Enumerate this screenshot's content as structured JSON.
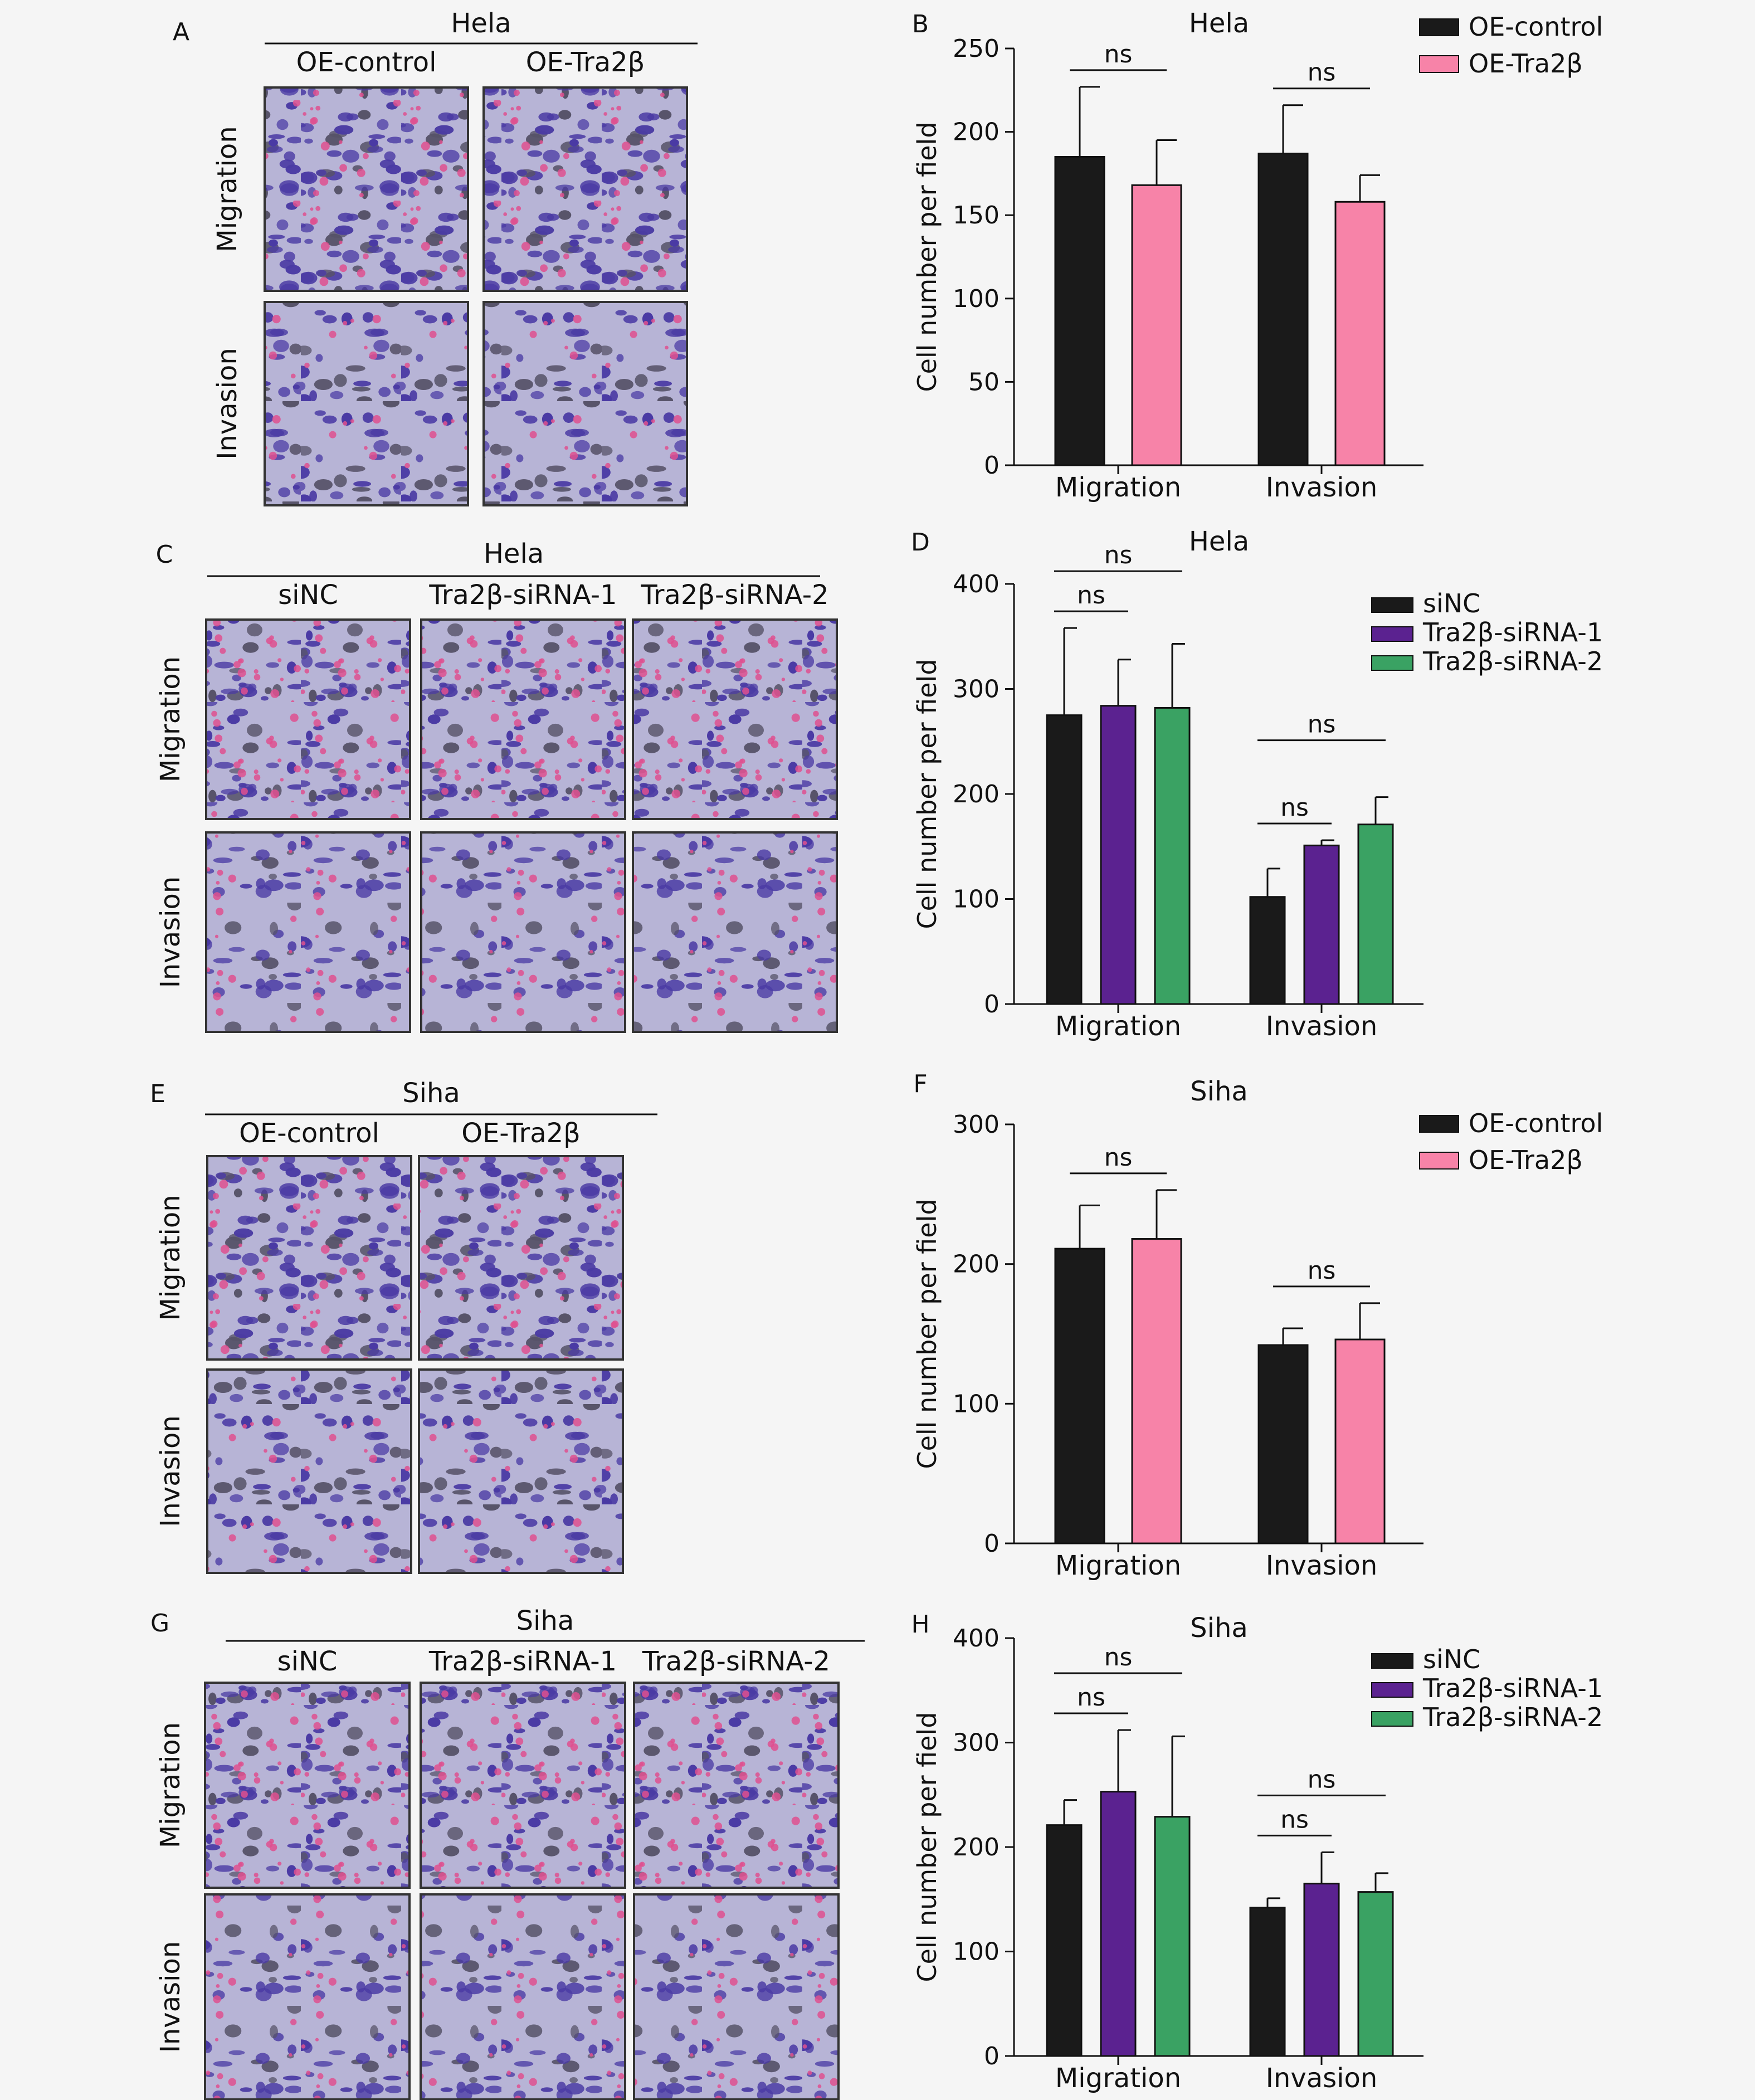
{
  "colors": {
    "oe_control": "#1a1a1a",
    "oe_tra2b": "#f783a8",
    "sinc": "#1a1a1a",
    "sirna1": "#5b2290",
    "sirna2": "#3aa263",
    "photo_base": "#b7b4d6",
    "stain_violet": "#4a3aa4",
    "stain_pink": "#e0508f"
  },
  "photo_panels": [
    {
      "letter": "A",
      "cell_line": "Hela",
      "columns": [
        "OE-control",
        "OE-Tra2β"
      ],
      "rows": [
        "Migration",
        "Invasion"
      ]
    },
    {
      "letter": "C",
      "cell_line": "Hela",
      "columns": [
        "siNC",
        "Tra2β-siRNA-1",
        "Tra2β-siRNA-2"
      ],
      "rows": [
        "Migration",
        "Invasion"
      ]
    },
    {
      "letter": "E",
      "cell_line": "Siha",
      "columns": [
        "OE-control",
        "OE-Tra2β"
      ],
      "rows": [
        "Migration",
        "Invasion"
      ]
    },
    {
      "letter": "G",
      "cell_line": "Siha",
      "columns": [
        "siNC",
        "Tra2β-siRNA-1",
        "Tra2β-siRNA-2"
      ],
      "rows": [
        "Migration",
        "Invasion"
      ]
    }
  ],
  "chart_data": [
    {
      "letter": "B",
      "type": "bar",
      "title": "Hela",
      "ylabel": "Cell number per field",
      "xlabel": "",
      "categories": [
        "Migration",
        "Invasion"
      ],
      "ylim": [
        0,
        250
      ],
      "yticks": [
        0,
        50,
        100,
        150,
        200,
        250
      ],
      "grid": false,
      "legend_position": "top-right",
      "series": [
        {
          "name": "OE-control",
          "values": [
            185,
            187
          ],
          "errors": [
            42,
            29
          ]
        },
        {
          "name": "OE-Tra2β",
          "values": [
            168,
            158
          ],
          "errors": [
            27,
            16
          ]
        }
      ],
      "annotations": [
        {
          "text": "ns",
          "category": 0,
          "from_series": 0,
          "to_series": 1
        },
        {
          "text": "ns",
          "category": 1,
          "from_series": 0,
          "to_series": 1
        }
      ]
    },
    {
      "letter": "D",
      "type": "bar",
      "title": "Hela",
      "ylabel": "Cell number per field",
      "xlabel": "",
      "categories": [
        "Migration",
        "Invasion"
      ],
      "ylim": [
        0,
        400
      ],
      "yticks": [
        0,
        100,
        200,
        300,
        400
      ],
      "grid": false,
      "legend_position": "top-right",
      "series": [
        {
          "name": "siNC",
          "values": [
            275,
            102
          ],
          "errors": [
            83,
            27
          ]
        },
        {
          "name": "Tra2β-siRNA-1",
          "values": [
            284,
            151
          ],
          "errors": [
            44,
            5
          ]
        },
        {
          "name": "Tra2β-siRNA-2",
          "values": [
            282,
            171
          ],
          "errors": [
            61,
            26
          ]
        }
      ],
      "annotations": [
        {
          "text": "ns",
          "category": 0,
          "from_series": 0,
          "to_series": 1
        },
        {
          "text": "ns",
          "category": 0,
          "from_series": 0,
          "to_series": 2
        },
        {
          "text": "ns",
          "category": 1,
          "from_series": 0,
          "to_series": 1
        },
        {
          "text": "ns",
          "category": 1,
          "from_series": 0,
          "to_series": 2
        }
      ]
    },
    {
      "letter": "F",
      "type": "bar",
      "title": "Siha",
      "ylabel": "Cell number per field",
      "xlabel": "",
      "categories": [
        "Migration",
        "Invasion"
      ],
      "ylim": [
        0,
        300
      ],
      "yticks": [
        0,
        100,
        200,
        300
      ],
      "grid": false,
      "legend_position": "top-right",
      "series": [
        {
          "name": "OE-control",
          "values": [
            211,
            142
          ],
          "errors": [
            31,
            12
          ]
        },
        {
          "name": "OE-Tra2β",
          "values": [
            218,
            146
          ],
          "errors": [
            35,
            26
          ]
        }
      ],
      "annotations": [
        {
          "text": "ns",
          "category": 0,
          "from_series": 0,
          "to_series": 1
        },
        {
          "text": "ns",
          "category": 1,
          "from_series": 0,
          "to_series": 1
        }
      ]
    },
    {
      "letter": "H",
      "type": "bar",
      "title": "Siha",
      "ylabel": "Cell number per field",
      "xlabel": "",
      "categories": [
        "Migration",
        "Invasion"
      ],
      "ylim": [
        0,
        400
      ],
      "yticks": [
        0,
        100,
        200,
        300,
        400
      ],
      "grid": false,
      "legend_position": "top-right",
      "series": [
        {
          "name": "siNC",
          "values": [
            221,
            142
          ],
          "errors": [
            24,
            9
          ]
        },
        {
          "name": "Tra2β-siRNA-1",
          "values": [
            253,
            165
          ],
          "errors": [
            59,
            30
          ]
        },
        {
          "name": "Tra2β-siRNA-2",
          "values": [
            229,
            157
          ],
          "errors": [
            77,
            18
          ]
        }
      ],
      "annotations": [
        {
          "text": "ns",
          "category": 0,
          "from_series": 0,
          "to_series": 1
        },
        {
          "text": "ns",
          "category": 0,
          "from_series": 0,
          "to_series": 2
        },
        {
          "text": "ns",
          "category": 1,
          "from_series": 0,
          "to_series": 1
        },
        {
          "text": "ns",
          "category": 1,
          "from_series": 0,
          "to_series": 2
        }
      ]
    }
  ]
}
